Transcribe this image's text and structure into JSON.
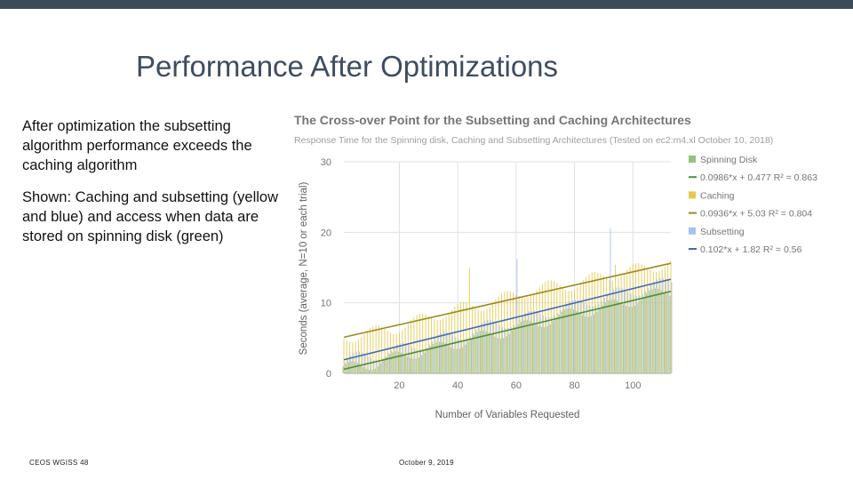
{
  "slide": {
    "title": "Performance After Optimizations",
    "para1": "After optimization the subsetting algorithm performance exceeds the caching algorithm",
    "para2": "Shown: Caching and subsetting (yellow and blue) and access when data are stored on spinning disk (green)",
    "footer_left": "CEOS WGISS 48",
    "footer_right": "October 9, 2019"
  },
  "colors": {
    "topbar": "#3c4a5c",
    "spinning_disk": "#93c47d",
    "spinning_disk_trend": "#4e8f36",
    "caching": "#e6c84a",
    "caching_trend": "#9e8a1c",
    "subsetting": "#a4c2f4",
    "subsetting_trend": "#3d6bb3"
  },
  "chart_data": {
    "type": "bar",
    "title": "The Cross-over Point for the Subsetting and Caching Architectures",
    "subtitle": "Response Time for the Spinning disk, Caching and Subsetting Architectures (Tested on ec2:m4.xl October 10, 2018)",
    "xlabel": "Number of Variables Requested",
    "ylabel": "Seconds (average, N=10 or each trial)",
    "xlim": [
      1,
      113
    ],
    "ylim": [
      0,
      30
    ],
    "xticks": [
      20,
      40,
      60,
      80,
      100
    ],
    "yticks": [
      0,
      10,
      20,
      30
    ],
    "grid": true,
    "legend_position": "right",
    "series": [
      {
        "name": "Spinning Disk",
        "trend_label": "0.0986*x + 0.477 R² = 0.863",
        "slope": 0.0986,
        "intercept": 0.477,
        "approx_values_every_8_vars": [
          0.6,
          1.2,
          2.0,
          2.9,
          3.5,
          4.4,
          5.2,
          6.0,
          6.8,
          7.8,
          8.6,
          9.2,
          10.0,
          10.9,
          11.6
        ]
      },
      {
        "name": "Caching",
        "trend_label": "0.0936*x + 5.03 R² = 0.804",
        "slope": 0.0936,
        "intercept": 5.03,
        "approx_values_every_8_vars": [
          5.0,
          5.7,
          6.2,
          7.3,
          8.4,
          9.2,
          9.8,
          10.8,
          11.8,
          12.4,
          12.7,
          13.8,
          14.3,
          15.1,
          15.6
        ]
      },
      {
        "name": "Subsetting",
        "trend_label": "0.102*x + 1.82 R² = 0.56",
        "slope": 0.102,
        "intercept": 1.82,
        "approx_values_every_8_vars": [
          1.8,
          2.5,
          3.0,
          4.0,
          4.8,
          5.5,
          6.6,
          7.3,
          8.0,
          9.0,
          9.7,
          10.8,
          11.5,
          12.2,
          13.0
        ]
      }
    ],
    "notable_spikes": [
      {
        "series": "Subsetting",
        "x": 60,
        "y": 16.2
      },
      {
        "series": "Subsetting",
        "x": 92,
        "y": 20.6
      },
      {
        "series": "Caching",
        "x": 44,
        "y": 15.0
      },
      {
        "series": "Caching",
        "x": 94,
        "y": 15.4
      }
    ]
  }
}
